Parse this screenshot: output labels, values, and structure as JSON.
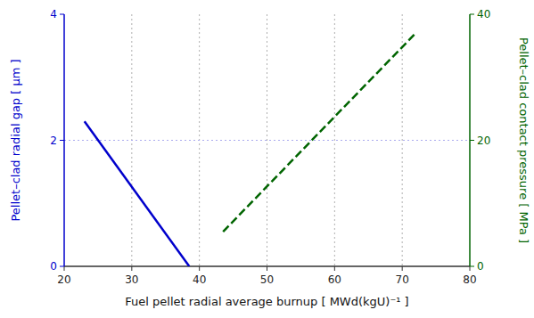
{
  "chart_data": {
    "type": "line",
    "xlabel": "Fuel pellet radial average burnup [ MWd(kgU)⁻¹ ]",
    "ylabel": "Pellet–clad radial gap [ μm ]",
    "y2label": "Pellet–clad contact pressure [ MPa ]",
    "xlim": [
      20,
      80
    ],
    "ylim": [
      0,
      4
    ],
    "y2lim": [
      0,
      40
    ],
    "xticks": [
      20,
      30,
      40,
      50,
      60,
      70,
      80
    ],
    "yticks": [
      0,
      2,
      4
    ],
    "y2ticks": [
      0,
      20,
      40
    ],
    "grid": true,
    "series": [
      {
        "x": [
          23.0,
          38.5
        ],
        "values": [
          2.3,
          0.0
        ],
        "color": "#0000cc",
        "line_style": "solid"
      },
      {
        "x": [
          43.5,
          72.0
        ],
        "values": [
          5.5,
          37.0
        ],
        "color": "#006400",
        "line_style": "dashed",
        "axis": "y2"
      }
    ]
  }
}
